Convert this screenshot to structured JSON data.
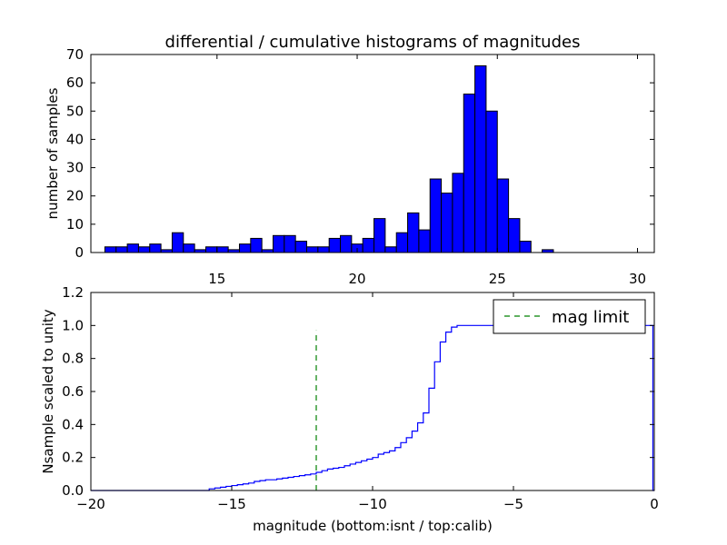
{
  "chart_data": [
    {
      "type": "bar",
      "title": "differential / cumulative histograms of magnitudes",
      "xlabel": "",
      "ylabel": "number of samples",
      "xlim": [
        10.5,
        30.6
      ],
      "ylim": [
        0,
        70
      ],
      "xticks": [
        15,
        20,
        25,
        30
      ],
      "yticks": [
        0,
        10,
        20,
        30,
        40,
        50,
        60,
        70
      ],
      "bin_edges": [
        11.0,
        11.4,
        11.8,
        12.2,
        12.6,
        13.0,
        13.4,
        13.8,
        14.2,
        14.6,
        15.0,
        15.4,
        15.8,
        16.2,
        16.6,
        17.0,
        17.4,
        17.8,
        18.2,
        18.6,
        19.0,
        19.4,
        19.8,
        20.2,
        20.6,
        21.0,
        21.4,
        21.8,
        22.2,
        22.6,
        23.0,
        23.4,
        23.8,
        24.2,
        24.6,
        25.0,
        25.4,
        25.8,
        26.2,
        26.6,
        27.0,
        27.4,
        27.8
      ],
      "values": [
        2,
        2,
        3,
        2,
        3,
        1,
        7,
        3,
        1,
        2,
        2,
        1,
        3,
        5,
        1,
        6,
        6,
        4,
        2,
        2,
        5,
        6,
        3,
        5,
        12,
        2,
        7,
        14,
        8,
        26,
        21,
        28,
        56,
        66,
        50,
        26,
        12,
        4,
        0,
        1,
        0,
        0
      ],
      "bar_color": "#0000ff",
      "grid": false
    },
    {
      "type": "line",
      "xlabel": "magnitude (bottom:isnt / top:calib)",
      "ylabel": "Nsample scaled to unity",
      "xlim": [
        -20,
        0
      ],
      "ylim": [
        0.0,
        1.2
      ],
      "xticks": [
        -20,
        -15,
        -10,
        -5,
        0
      ],
      "yticks": [
        0.0,
        0.2,
        0.4,
        0.6,
        0.8,
        1.0,
        1.2
      ],
      "series": [
        {
          "color": "#0000ff",
          "style": "step",
          "x": [
            -20,
            -16.0,
            -15.8,
            -15.6,
            -15.4,
            -15.2,
            -15.0,
            -14.8,
            -14.6,
            -14.4,
            -14.2,
            -14.0,
            -13.8,
            -13.6,
            -13.4,
            -13.2,
            -13.0,
            -12.8,
            -12.6,
            -12.4,
            -12.2,
            -12.0,
            -11.8,
            -11.6,
            -11.4,
            -11.2,
            -11.0,
            -10.8,
            -10.6,
            -10.4,
            -10.2,
            -10.0,
            -9.8,
            -9.6,
            -9.4,
            -9.2,
            -9.0,
            -8.8,
            -8.6,
            -8.4,
            -8.2,
            -8.0,
            -7.8,
            -7.6,
            -7.4,
            -7.2,
            -7.0,
            -6.8,
            -6.6,
            -6.4,
            -6.2,
            -6.0,
            -5.8,
            -5.6,
            -5.4,
            -5.2,
            -5.0,
            -0.05
          ],
          "y": [
            0.0,
            0.0,
            0.01,
            0.015,
            0.02,
            0.025,
            0.03,
            0.035,
            0.04,
            0.045,
            0.055,
            0.06,
            0.065,
            0.065,
            0.07,
            0.075,
            0.08,
            0.085,
            0.09,
            0.095,
            0.1,
            0.11,
            0.12,
            0.13,
            0.135,
            0.14,
            0.15,
            0.16,
            0.17,
            0.18,
            0.19,
            0.2,
            0.22,
            0.23,
            0.24,
            0.26,
            0.29,
            0.32,
            0.36,
            0.41,
            0.47,
            0.62,
            0.78,
            0.9,
            0.96,
            0.99,
            1.0,
            1.0,
            1.0,
            1.0,
            1.0,
            1.0,
            1.0,
            1.0,
            1.0,
            1.0,
            1.0,
            0.0
          ]
        },
        {
          "name": "mag limit",
          "color": "#008000",
          "style": "dashed",
          "x": [
            -12.0,
            -12.0
          ],
          "y": [
            0.0,
            0.97
          ]
        }
      ],
      "legend": {
        "placement": "top-right",
        "entries": [
          "mag limit"
        ]
      },
      "grid": false
    }
  ]
}
